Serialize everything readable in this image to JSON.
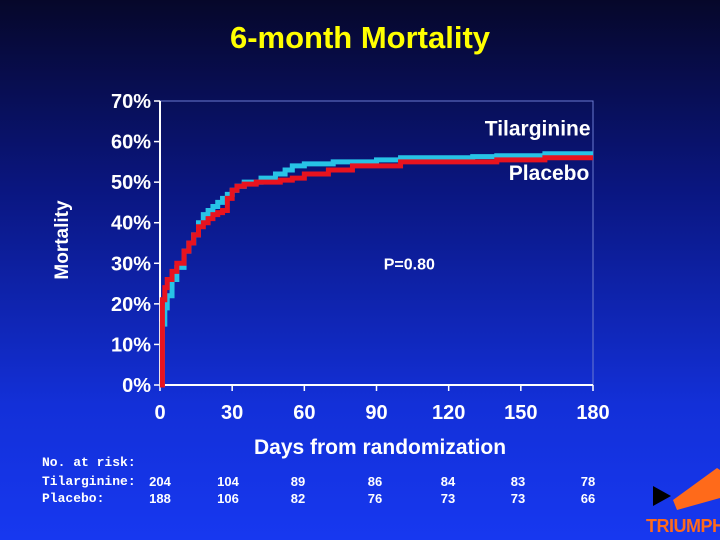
{
  "chart_data": {
    "type": "line",
    "title": "6-month Mortality",
    "xlabel": "Days from randomization",
    "ylabel": "Mortality",
    "xlim": [
      0,
      180
    ],
    "ylim": [
      0,
      70
    ],
    "x_ticks": [
      0,
      30,
      60,
      90,
      120,
      150,
      180
    ],
    "x_tick_labels": [
      "0",
      "30",
      "60",
      "90",
      "120",
      "150",
      "180"
    ],
    "y_ticks": [
      0,
      10,
      20,
      30,
      40,
      50,
      60,
      70
    ],
    "y_tick_labels": [
      "0%",
      "10%",
      "20%",
      "30%",
      "40%",
      "50%",
      "60%",
      "70%"
    ],
    "series": [
      {
        "name": "Tilarginine",
        "color": "#27c3e6",
        "x": [
          0,
          1,
          2,
          3,
          5,
          7,
          10,
          12,
          14,
          16,
          18,
          20,
          22,
          24,
          26,
          28,
          30,
          32,
          35,
          38,
          42,
          45,
          48,
          52,
          55,
          60,
          65,
          72,
          80,
          90,
          100,
          110,
          120,
          130,
          140,
          150,
          160,
          170,
          180
        ],
        "y": [
          0,
          15,
          19,
          22,
          26,
          29,
          33,
          35,
          37,
          40,
          42,
          43,
          44,
          45,
          46,
          47,
          48,
          49,
          50,
          50,
          51,
          51,
          52,
          53,
          54,
          54.5,
          54.5,
          55,
          55,
          55.5,
          56,
          56,
          56,
          56.3,
          56.5,
          56.5,
          57,
          57,
          57
        ]
      },
      {
        "name": "Placebo",
        "color": "#e8131f",
        "x": [
          0,
          1,
          2,
          3,
          5,
          7,
          10,
          12,
          14,
          16,
          18,
          20,
          22,
          24,
          26,
          28,
          30,
          32,
          35,
          40,
          45,
          50,
          55,
          60,
          70,
          80,
          90,
          100,
          110,
          120,
          130,
          140,
          150,
          160,
          170,
          180
        ],
        "y": [
          0,
          21,
          24,
          26,
          28,
          30,
          33,
          35,
          37,
          39,
          40,
          41,
          42,
          42.5,
          43,
          46,
          48,
          49,
          49.5,
          50,
          50,
          50.5,
          51,
          52,
          53,
          54,
          54,
          55,
          55,
          55,
          55,
          55.5,
          55.5,
          56,
          56,
          56
        ]
      }
    ],
    "annotations": [
      {
        "text": "Tilarginine",
        "x": 135,
        "y": 61.5
      },
      {
        "text": "Placebo",
        "x": 145,
        "y": 50.5
      },
      {
        "text": "P=0.80",
        "x": 93,
        "y": 28.5
      }
    ],
    "grid": false
  },
  "risk_table": {
    "header": "No. at risk:",
    "rows": [
      {
        "label": "Tilarginine:",
        "values": [
          "204",
          "104",
          "89",
          "86",
          "84",
          "83",
          "78"
        ]
      },
      {
        "label": "Placebo:",
        "values": [
          "188",
          "106",
          "82",
          "76",
          "73",
          "73",
          "66"
        ]
      }
    ]
  },
  "logo": {
    "text": "TRIUMPH",
    "arrow_color": "#ff6a1a"
  }
}
